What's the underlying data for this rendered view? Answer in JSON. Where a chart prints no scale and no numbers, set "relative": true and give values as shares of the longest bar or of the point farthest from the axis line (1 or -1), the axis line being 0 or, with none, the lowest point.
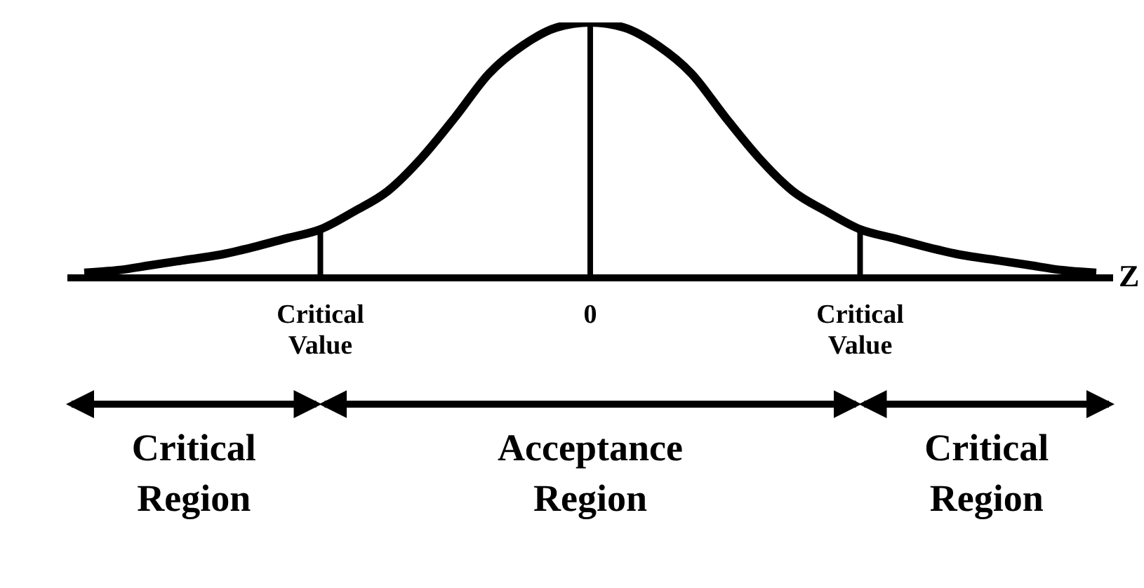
{
  "chart_data": {
    "type": "line",
    "relative": true,
    "xlabel": "Z",
    "marker": "none",
    "categories": [
      null,
      null,
      null,
      null,
      null,
      null,
      null,
      "Critical Value",
      null,
      null,
      null,
      null,
      null,
      null,
      null,
      "0",
      null,
      null,
      null,
      null,
      null,
      null,
      null,
      "Critical Value",
      null,
      null,
      null,
      null,
      null,
      null,
      null
    ],
    "series": [
      {
        "color": "#000000",
        "values": [
          0.02,
          0.03,
          0.05,
          0.07,
          0.09,
          0.12,
          0.155,
          0.19,
          0.26,
          0.34,
          0.47,
          0.63,
          0.8,
          0.91,
          0.98,
          1,
          0.98,
          0.91,
          0.8,
          0.63,
          0.47,
          0.34,
          0.26,
          0.19,
          0.155,
          0.12,
          0.09,
          0.07,
          0.05,
          0.03,
          0.02
        ]
      },
      {
        "type": "bar",
        "color": "#000000",
        "values": [
          null,
          null,
          null,
          null,
          null,
          null,
          null,
          0.19,
          null,
          null,
          null,
          null,
          null,
          null,
          null,
          1,
          null,
          null,
          null,
          null,
          null,
          null,
          null,
          0.19,
          null,
          null,
          null,
          null,
          null,
          null,
          null
        ]
      }
    ],
    "annotations": [
      "Critical Region",
      "Acceptance Region",
      "Critical Region"
    ]
  }
}
